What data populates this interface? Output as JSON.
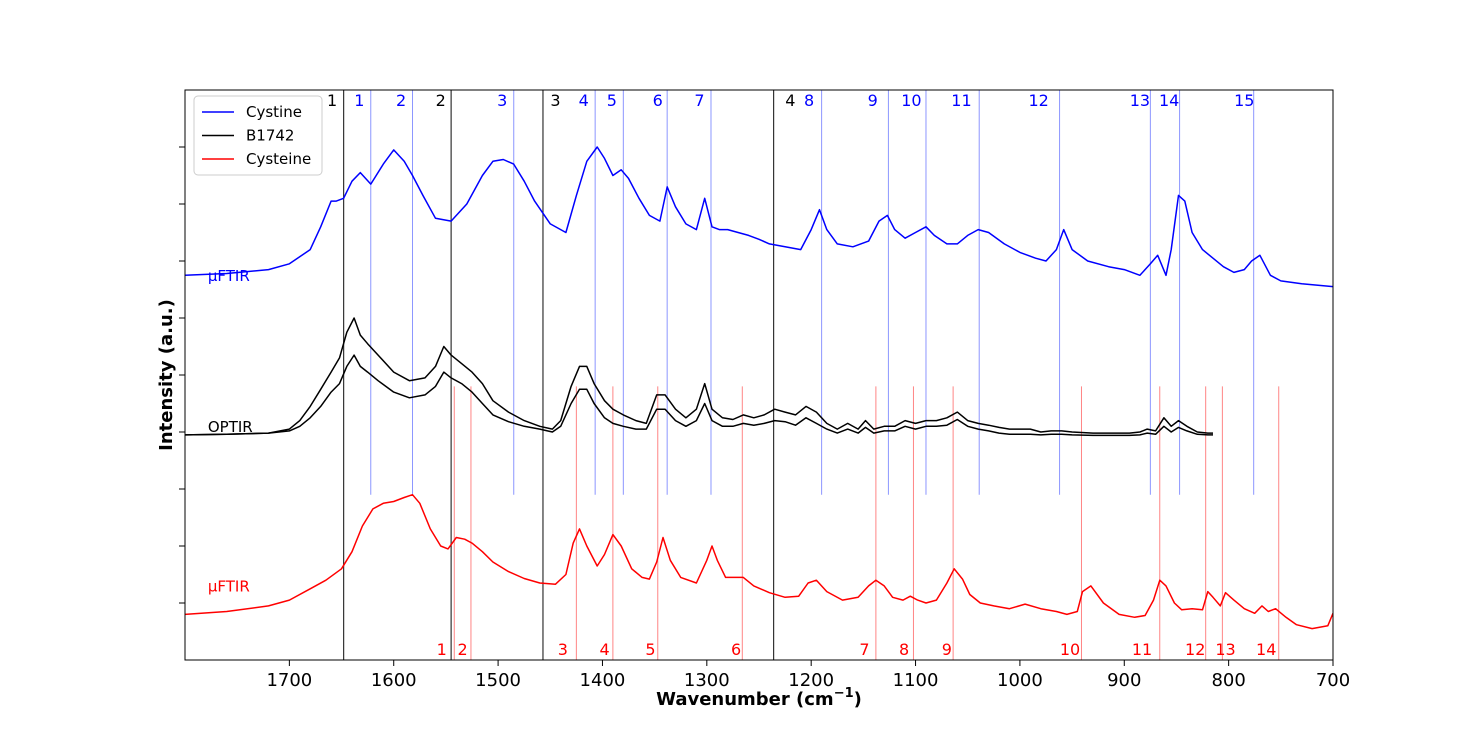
{
  "chart_data": {
    "type": "line",
    "title": "",
    "xlabel": "Wavenumber (cm",
    "xlabel_sup": "−1",
    "xlabel_close": ")",
    "ylabel": "Intensity (a.u.)",
    "xlim": [
      1800,
      700
    ],
    "x_inverted": true,
    "ylim": [
      0,
      10
    ],
    "y_tick_labels_shown": false,
    "y_ticks": [
      1,
      2,
      3,
      4,
      5,
      6,
      7,
      8,
      9
    ],
    "x_ticks": [
      1700,
      1600,
      1500,
      1400,
      1300,
      1200,
      1100,
      1000,
      900,
      800,
      700
    ],
    "grid": false,
    "legend": {
      "placement": "top-left",
      "entries": [
        {
          "name": "Cystine",
          "color": "#0000ff"
        },
        {
          "name": "B1742",
          "color": "#000000"
        },
        {
          "name": "Cysteine",
          "color": "#ff0000"
        }
      ]
    },
    "trace_labels": [
      {
        "text": "μFTIR",
        "color": "#0000ff",
        "x": 1780,
        "y": 6.65
      },
      {
        "text": "OPTIR",
        "color": "#000000",
        "x": 1780,
        "y": 4.0
      },
      {
        "text": "μFTIR",
        "color": "#ff0000",
        "x": 1780,
        "y": 1.2
      }
    ],
    "series": [
      {
        "name": "Cystine",
        "color": "#0000ff",
        "x": [
          1800,
          1760,
          1720,
          1700,
          1680,
          1670,
          1660,
          1655,
          1648,
          1640,
          1632,
          1622,
          1610,
          1600,
          1590,
          1582,
          1572,
          1560,
          1545,
          1530,
          1515,
          1505,
          1495,
          1485,
          1475,
          1465,
          1450,
          1435,
          1425,
          1415,
          1405,
          1398,
          1390,
          1382,
          1375,
          1365,
          1355,
          1345,
          1338,
          1330,
          1320,
          1310,
          1302,
          1295,
          1288,
          1280,
          1270,
          1260,
          1250,
          1240,
          1225,
          1210,
          1200,
          1192,
          1185,
          1175,
          1160,
          1145,
          1135,
          1127,
          1120,
          1110,
          1100,
          1090,
          1082,
          1070,
          1060,
          1050,
          1040,
          1030,
          1015,
          1000,
          985,
          975,
          965,
          958,
          950,
          935,
          915,
          900,
          885,
          875,
          868,
          860,
          855,
          848,
          842,
          835,
          825,
          815,
          805,
          795,
          785,
          778,
          770,
          760,
          750,
          730,
          700
        ],
        "y": [
          6.75,
          6.78,
          6.85,
          6.95,
          7.2,
          7.6,
          8.05,
          8.05,
          8.1,
          8.4,
          8.55,
          8.35,
          8.7,
          8.95,
          8.75,
          8.5,
          8.15,
          7.75,
          7.7,
          8.0,
          8.5,
          8.75,
          8.78,
          8.7,
          8.4,
          8.05,
          7.65,
          7.5,
          8.15,
          8.75,
          9.0,
          8.8,
          8.5,
          8.6,
          8.45,
          8.1,
          7.8,
          7.7,
          8.3,
          7.95,
          7.65,
          7.55,
          8.1,
          7.6,
          7.55,
          7.55,
          7.5,
          7.45,
          7.38,
          7.3,
          7.25,
          7.2,
          7.55,
          7.9,
          7.55,
          7.3,
          7.25,
          7.35,
          7.7,
          7.8,
          7.55,
          7.4,
          7.5,
          7.6,
          7.45,
          7.3,
          7.3,
          7.45,
          7.55,
          7.5,
          7.3,
          7.15,
          7.05,
          7.0,
          7.2,
          7.55,
          7.2,
          7.0,
          6.9,
          6.85,
          6.75,
          6.95,
          7.1,
          6.75,
          7.2,
          8.15,
          8.05,
          7.5,
          7.2,
          7.05,
          6.9,
          6.8,
          6.85,
          7.0,
          7.1,
          6.75,
          6.65,
          6.6,
          6.55
        ]
      },
      {
        "name": "B1742",
        "color": "#000000",
        "x": [
          1800,
          1760,
          1720,
          1700,
          1690,
          1680,
          1670,
          1660,
          1652,
          1645,
          1638,
          1632,
          1625,
          1615,
          1600,
          1585,
          1570,
          1560,
          1552,
          1545,
          1535,
          1525,
          1515,
          1505,
          1490,
          1475,
          1460,
          1448,
          1440,
          1430,
          1422,
          1415,
          1408,
          1398,
          1390,
          1380,
          1368,
          1358,
          1348,
          1340,
          1330,
          1320,
          1310,
          1302,
          1295,
          1285,
          1275,
          1265,
          1255,
          1245,
          1235,
          1225,
          1215,
          1205,
          1195,
          1185,
          1175,
          1165,
          1155,
          1148,
          1140,
          1130,
          1120,
          1110,
          1100,
          1090,
          1080,
          1070,
          1060,
          1050,
          1040,
          1030,
          1020,
          1010,
          1000,
          990,
          980,
          970,
          960,
          950,
          930,
          910,
          895,
          885,
          878,
          870,
          862,
          855,
          848,
          840,
          830,
          820,
          815
        ],
        "y": [
          3.95,
          3.96,
          3.98,
          4.05,
          4.2,
          4.45,
          4.75,
          5.05,
          5.3,
          5.75,
          6.0,
          5.7,
          5.55,
          5.35,
          5.05,
          4.9,
          4.95,
          5.15,
          5.5,
          5.35,
          5.2,
          5.05,
          4.85,
          4.55,
          4.35,
          4.2,
          4.1,
          4.05,
          4.2,
          4.8,
          5.15,
          5.15,
          4.85,
          4.55,
          4.4,
          4.3,
          4.2,
          4.15,
          4.65,
          4.65,
          4.4,
          4.25,
          4.4,
          4.85,
          4.4,
          4.25,
          4.22,
          4.3,
          4.25,
          4.3,
          4.4,
          4.35,
          4.3,
          4.45,
          4.35,
          4.15,
          4.05,
          4.15,
          4.05,
          4.2,
          4.05,
          4.1,
          4.1,
          4.2,
          4.15,
          4.2,
          4.2,
          4.25,
          4.35,
          4.2,
          4.15,
          4.12,
          4.08,
          4.05,
          4.05,
          4.05,
          4.0,
          4.02,
          4.02,
          4.0,
          3.98,
          3.98,
          3.98,
          4.0,
          4.05,
          4.02,
          4.25,
          4.1,
          4.2,
          4.1,
          4.0,
          3.98,
          3.98
        ]
      },
      {
        "name": "B1742",
        "color": "#000000",
        "x": [
          1800,
          1760,
          1720,
          1700,
          1690,
          1680,
          1670,
          1660,
          1652,
          1645,
          1638,
          1632,
          1625,
          1615,
          1600,
          1585,
          1570,
          1560,
          1552,
          1545,
          1535,
          1525,
          1515,
          1505,
          1490,
          1475,
          1460,
          1448,
          1440,
          1430,
          1422,
          1415,
          1408,
          1398,
          1390,
          1380,
          1368,
          1358,
          1348,
          1340,
          1330,
          1320,
          1310,
          1302,
          1295,
          1285,
          1275,
          1265,
          1255,
          1245,
          1235,
          1225,
          1215,
          1205,
          1195,
          1185,
          1175,
          1165,
          1155,
          1148,
          1140,
          1130,
          1120,
          1110,
          1100,
          1090,
          1080,
          1070,
          1060,
          1050,
          1040,
          1030,
          1020,
          1010,
          1000,
          990,
          980,
          970,
          960,
          950,
          930,
          910,
          895,
          885,
          878,
          870,
          862,
          855,
          848,
          840,
          830,
          820,
          815
        ],
        "y": [
          3.95,
          3.96,
          3.98,
          4.02,
          4.1,
          4.25,
          4.45,
          4.7,
          4.85,
          5.15,
          5.35,
          5.15,
          5.05,
          4.9,
          4.7,
          4.6,
          4.65,
          4.8,
          5.05,
          4.95,
          4.85,
          4.7,
          4.5,
          4.3,
          4.18,
          4.1,
          4.05,
          4.0,
          4.1,
          4.5,
          4.75,
          4.75,
          4.5,
          4.25,
          4.15,
          4.1,
          4.05,
          4.05,
          4.4,
          4.4,
          4.2,
          4.1,
          4.2,
          4.5,
          4.2,
          4.1,
          4.1,
          4.15,
          4.12,
          4.15,
          4.2,
          4.18,
          4.12,
          4.25,
          4.15,
          4.05,
          3.98,
          4.05,
          3.98,
          4.08,
          3.98,
          4.02,
          4.02,
          4.1,
          4.05,
          4.1,
          4.1,
          4.12,
          4.22,
          4.1,
          4.05,
          4.02,
          3.98,
          3.96,
          3.96,
          3.96,
          3.95,
          3.96,
          3.96,
          3.95,
          3.94,
          3.94,
          3.94,
          3.95,
          3.98,
          3.96,
          4.1,
          4.0,
          4.08,
          4.02,
          3.96,
          3.95,
          3.95
        ]
      },
      {
        "name": "Cysteine",
        "color": "#ff0000",
        "x": [
          1800,
          1760,
          1720,
          1700,
          1680,
          1665,
          1650,
          1640,
          1630,
          1620,
          1610,
          1600,
          1590,
          1582,
          1575,
          1565,
          1555,
          1548,
          1540,
          1532,
          1525,
          1515,
          1505,
          1490,
          1475,
          1460,
          1445,
          1435,
          1428,
          1422,
          1415,
          1405,
          1398,
          1390,
          1382,
          1372,
          1362,
          1355,
          1348,
          1342,
          1335,
          1325,
          1310,
          1300,
          1295,
          1290,
          1282,
          1272,
          1265,
          1255,
          1240,
          1225,
          1212,
          1203,
          1195,
          1185,
          1170,
          1155,
          1145,
          1138,
          1130,
          1122,
          1112,
          1105,
          1098,
          1090,
          1080,
          1070,
          1063,
          1055,
          1048,
          1038,
          1025,
          1010,
          995,
          980,
          965,
          955,
          945,
          940,
          932,
          920,
          905,
          890,
          880,
          872,
          866,
          860,
          852,
          845,
          835,
          825,
          820,
          815,
          808,
          803,
          795,
          785,
          775,
          768,
          762,
          755,
          745,
          735,
          720,
          705,
          700
        ],
        "y": [
          0.8,
          0.85,
          0.95,
          1.05,
          1.25,
          1.4,
          1.6,
          1.9,
          2.35,
          2.65,
          2.75,
          2.78,
          2.85,
          2.9,
          2.75,
          2.3,
          2.0,
          1.95,
          2.15,
          2.12,
          2.05,
          1.9,
          1.72,
          1.55,
          1.43,
          1.35,
          1.33,
          1.5,
          2.05,
          2.3,
          2.0,
          1.65,
          1.85,
          2.2,
          2.0,
          1.6,
          1.45,
          1.42,
          1.72,
          2.15,
          1.75,
          1.45,
          1.35,
          1.75,
          2.0,
          1.75,
          1.45,
          1.45,
          1.45,
          1.3,
          1.18,
          1.1,
          1.12,
          1.35,
          1.4,
          1.2,
          1.05,
          1.1,
          1.3,
          1.4,
          1.3,
          1.1,
          1.05,
          1.12,
          1.05,
          1.0,
          1.05,
          1.35,
          1.6,
          1.42,
          1.15,
          1.0,
          0.95,
          0.9,
          0.98,
          0.9,
          0.85,
          0.8,
          0.85,
          1.2,
          1.3,
          1.0,
          0.8,
          0.75,
          0.78,
          1.05,
          1.4,
          1.3,
          1.0,
          0.88,
          0.9,
          0.88,
          1.2,
          1.1,
          0.95,
          1.18,
          1.05,
          0.9,
          0.82,
          0.95,
          0.85,
          0.9,
          0.75,
          0.62,
          0.55,
          0.6,
          0.82
        ]
      }
    ],
    "reference_lines": {
      "black": {
        "positions": [
          1648,
          1545,
          1457,
          1236
        ],
        "labels": [
          "1",
          "2",
          "3",
          "4"
        ],
        "label_x": [
          1659,
          1555,
          1445,
          1220
        ]
      },
      "blue": {
        "positions": [
          1622,
          1582,
          1485,
          1407,
          1380,
          1338,
          1296,
          1190,
          1126,
          1090,
          1039,
          962,
          875,
          847,
          776
        ],
        "labels": [
          "1",
          "2",
          "3",
          "4",
          "5",
          "6",
          "7",
          "8",
          "9",
          "10",
          "11",
          "12",
          "13",
          "14",
          "15"
        ],
        "label_x": [
          1633,
          1593,
          1496,
          1418,
          1391,
          1347,
          1307,
          1202,
          1141,
          1104,
          1056,
          982,
          885,
          857,
          785
        ]
      },
      "red": {
        "positions": [
          1542,
          1526,
          1425,
          1390,
          1347,
          1266,
          1138,
          1102,
          1064,
          941,
          866,
          822,
          806,
          752
        ],
        "labels": [
          "1",
          "2",
          "3",
          "4",
          "5",
          "6",
          "7",
          "8",
          "9",
          "10",
          "11",
          "12",
          "13",
          "14"
        ],
        "label_x": [
          1554,
          1534,
          1438,
          1398,
          1354,
          1272,
          1149,
          1111,
          1070,
          952,
          883,
          832,
          803,
          764
        ]
      }
    }
  }
}
